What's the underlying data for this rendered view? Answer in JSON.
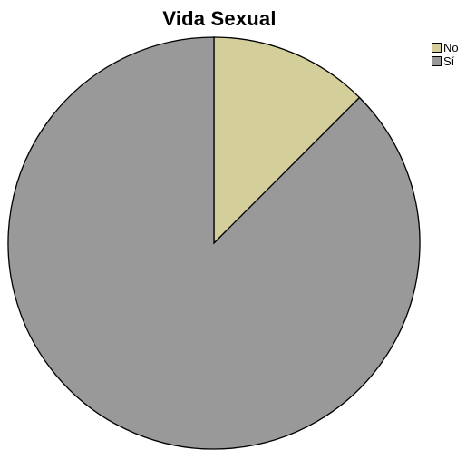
{
  "chart_data": {
    "type": "pie",
    "title": "Vida Sexual",
    "categories": [
      "No",
      "Sí"
    ],
    "values": [
      12.5,
      87.5
    ],
    "colors": [
      "#d3ce9a",
      "#999999"
    ],
    "legend_position": "top-right"
  }
}
